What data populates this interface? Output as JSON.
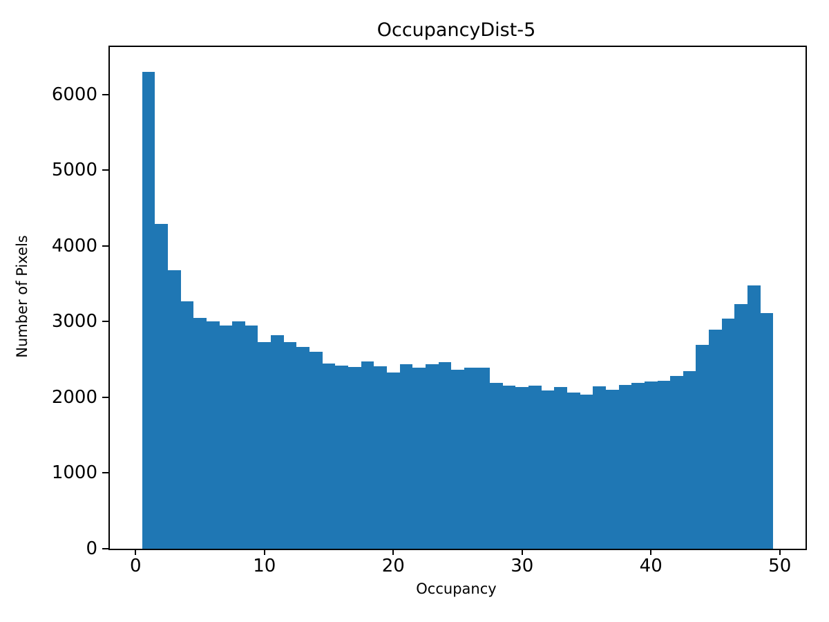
{
  "chart_data": {
    "type": "bar",
    "subtype": "histogram",
    "title": "OccupancyDist-5",
    "xlabel": "Occupancy",
    "ylabel": "Number of Pixels",
    "bar_color": "#1f77b4",
    "grid": false,
    "legend": "none",
    "bin_width": 1,
    "xlim": [
      -2,
      52
    ],
    "ylim": [
      0,
      6630
    ],
    "xticks": [
      0,
      10,
      20,
      30,
      40,
      50
    ],
    "yticks": [
      0,
      1000,
      2000,
      3000,
      4000,
      5000,
      6000
    ],
    "bin_centers": [
      1,
      2,
      3,
      4,
      5,
      6,
      7,
      8,
      9,
      10,
      11,
      12,
      13,
      14,
      15,
      16,
      17,
      18,
      19,
      20,
      21,
      22,
      23,
      24,
      25,
      26,
      27,
      28,
      29,
      30,
      31,
      32,
      33,
      34,
      35,
      36,
      37,
      38,
      39,
      40,
      41,
      42,
      43,
      44,
      45,
      46,
      47,
      48,
      49
    ],
    "values": [
      6300,
      4290,
      3680,
      3270,
      3050,
      3000,
      2950,
      3000,
      2950,
      2730,
      2820,
      2735,
      2665,
      2600,
      2445,
      2420,
      2400,
      2475,
      2415,
      2325,
      2440,
      2390,
      2440,
      2470,
      2365,
      2390,
      2390,
      2195,
      2155,
      2135,
      2155,
      2095,
      2140,
      2060,
      2040,
      2150,
      2100,
      2160,
      2195,
      2210,
      2220,
      2285,
      2345,
      2690,
      2895,
      3040,
      3230,
      3475,
      3115
    ]
  }
}
